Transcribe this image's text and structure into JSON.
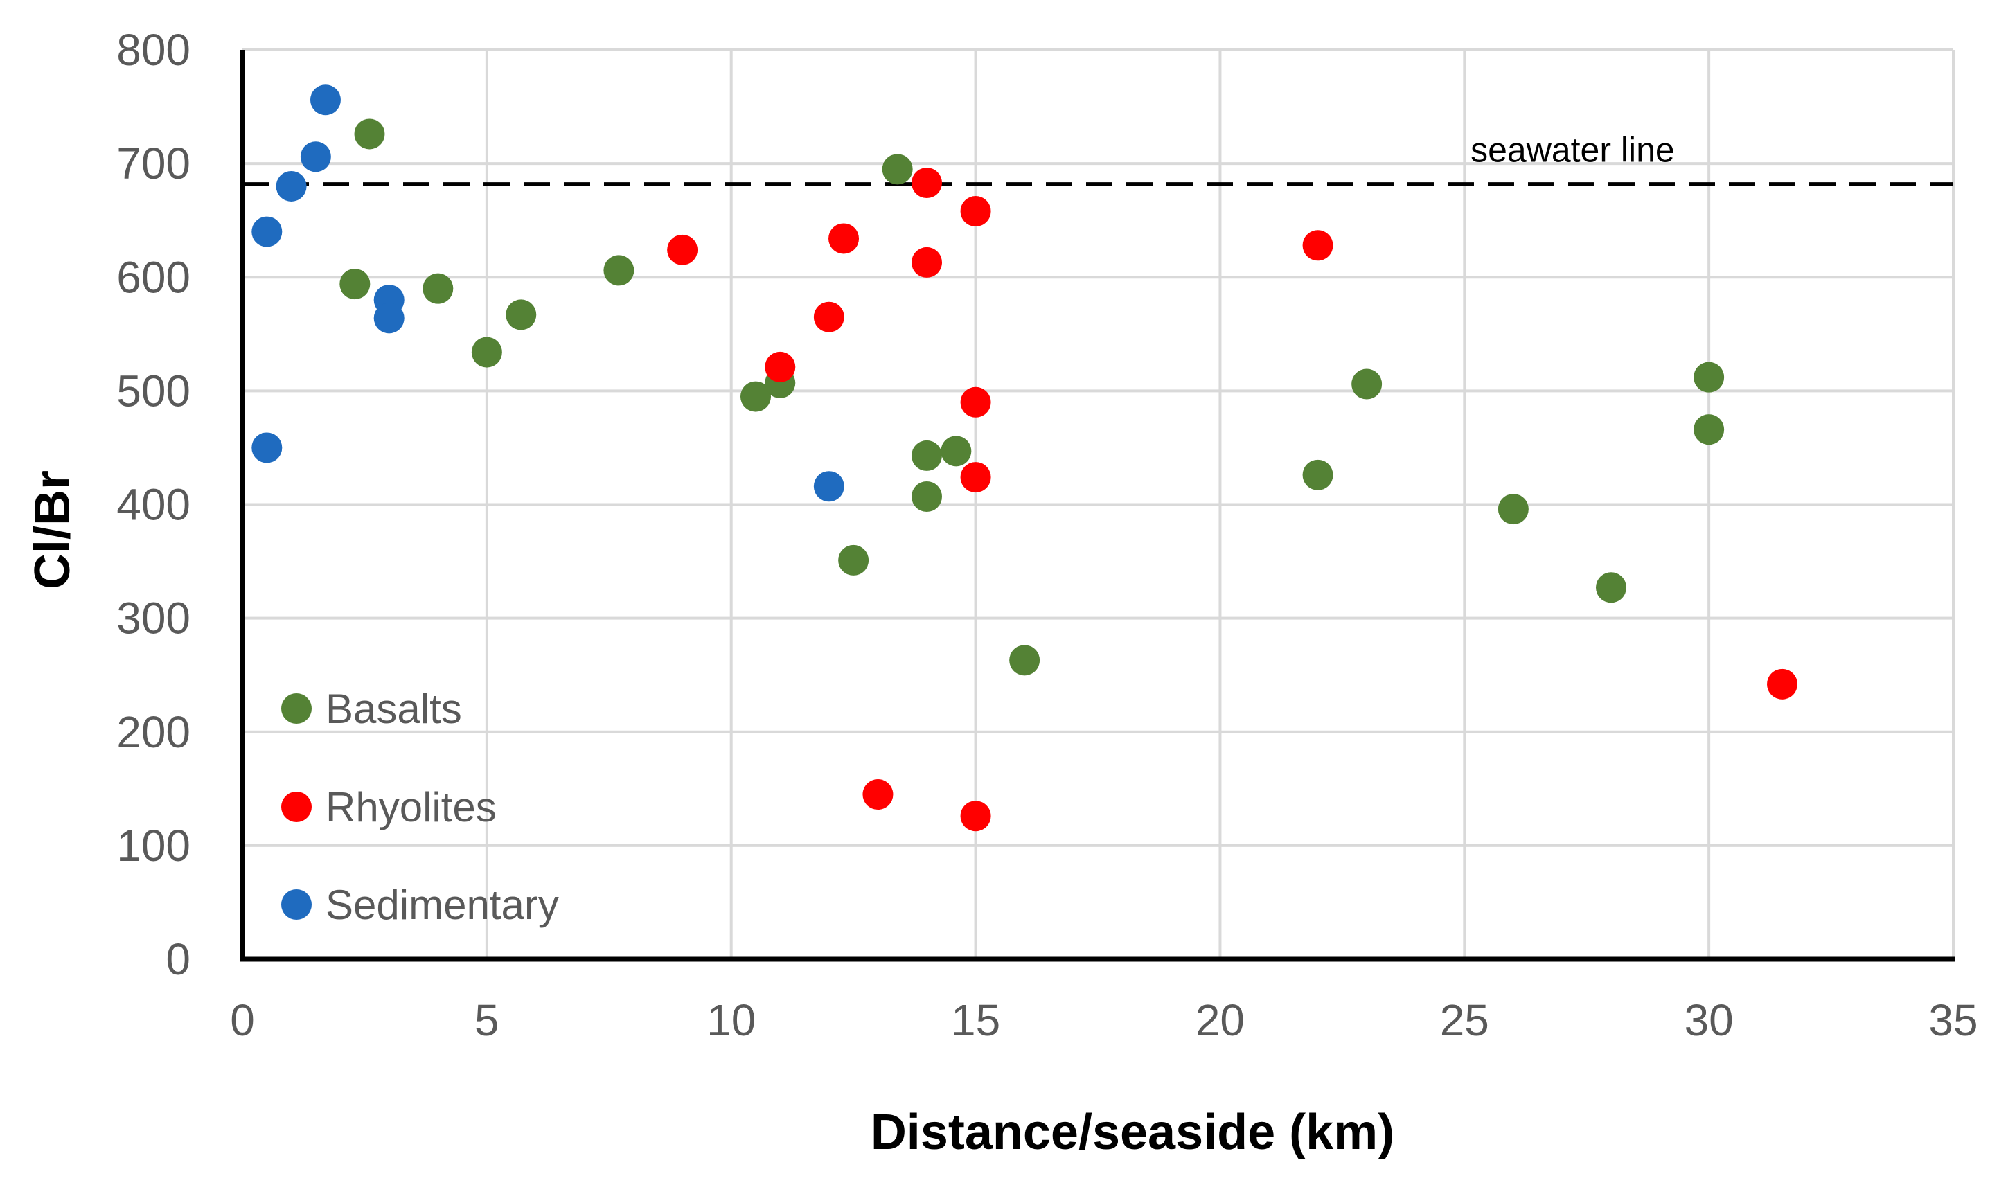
{
  "chart_data": {
    "type": "scatter",
    "title": "",
    "xlabel": "Distance/seaside (km)",
    "ylabel": "Cl/Br",
    "xlim": [
      0,
      35
    ],
    "ylim": [
      0,
      800
    ],
    "xticks": [
      0,
      5,
      10,
      15,
      20,
      25,
      30,
      35
    ],
    "yticks": [
      0,
      100,
      200,
      300,
      400,
      500,
      600,
      700,
      800
    ],
    "grid": true,
    "legend_position": "bottom-left",
    "series": [
      {
        "name": "Basalts",
        "color": "#548235",
        "points": [
          [
            2.6,
            726
          ],
          [
            2.3,
            594
          ],
          [
            4.0,
            590
          ],
          [
            5.0,
            534
          ],
          [
            5.7,
            567
          ],
          [
            7.7,
            606
          ],
          [
            10.5,
            495
          ],
          [
            11.0,
            507
          ],
          [
            12.5,
            351
          ],
          [
            13.4,
            695
          ],
          [
            14.0,
            443
          ],
          [
            14.6,
            447
          ],
          [
            14.0,
            407
          ],
          [
            16.0,
            263
          ],
          [
            22.0,
            426
          ],
          [
            23.0,
            506
          ],
          [
            26.0,
            396
          ],
          [
            28.0,
            327
          ],
          [
            30.0,
            512
          ],
          [
            30.0,
            466
          ]
        ]
      },
      {
        "name": "Rhyolites",
        "color": "#ff0000",
        "points": [
          [
            9.0,
            624
          ],
          [
            11.0,
            521
          ],
          [
            12.0,
            565
          ],
          [
            12.3,
            634
          ],
          [
            13.0,
            145
          ],
          [
            14.0,
            683
          ],
          [
            14.0,
            613
          ],
          [
            15.0,
            658
          ],
          [
            15.0,
            490
          ],
          [
            15.0,
            424
          ],
          [
            15.0,
            126
          ],
          [
            22.0,
            628
          ],
          [
            31.5,
            242
          ]
        ]
      },
      {
        "name": "Sedimentary",
        "color": "#1f6bbf",
        "points": [
          [
            1.7,
            756
          ],
          [
            1.5,
            706
          ],
          [
            1.0,
            680
          ],
          [
            0.5,
            640
          ],
          [
            3.0,
            580
          ],
          [
            3.0,
            564
          ],
          [
            0.5,
            450
          ],
          [
            12.0,
            416
          ]
        ]
      }
    ],
    "reference_line": {
      "label": "seawater line",
      "y": 682,
      "style": "dashed"
    }
  }
}
